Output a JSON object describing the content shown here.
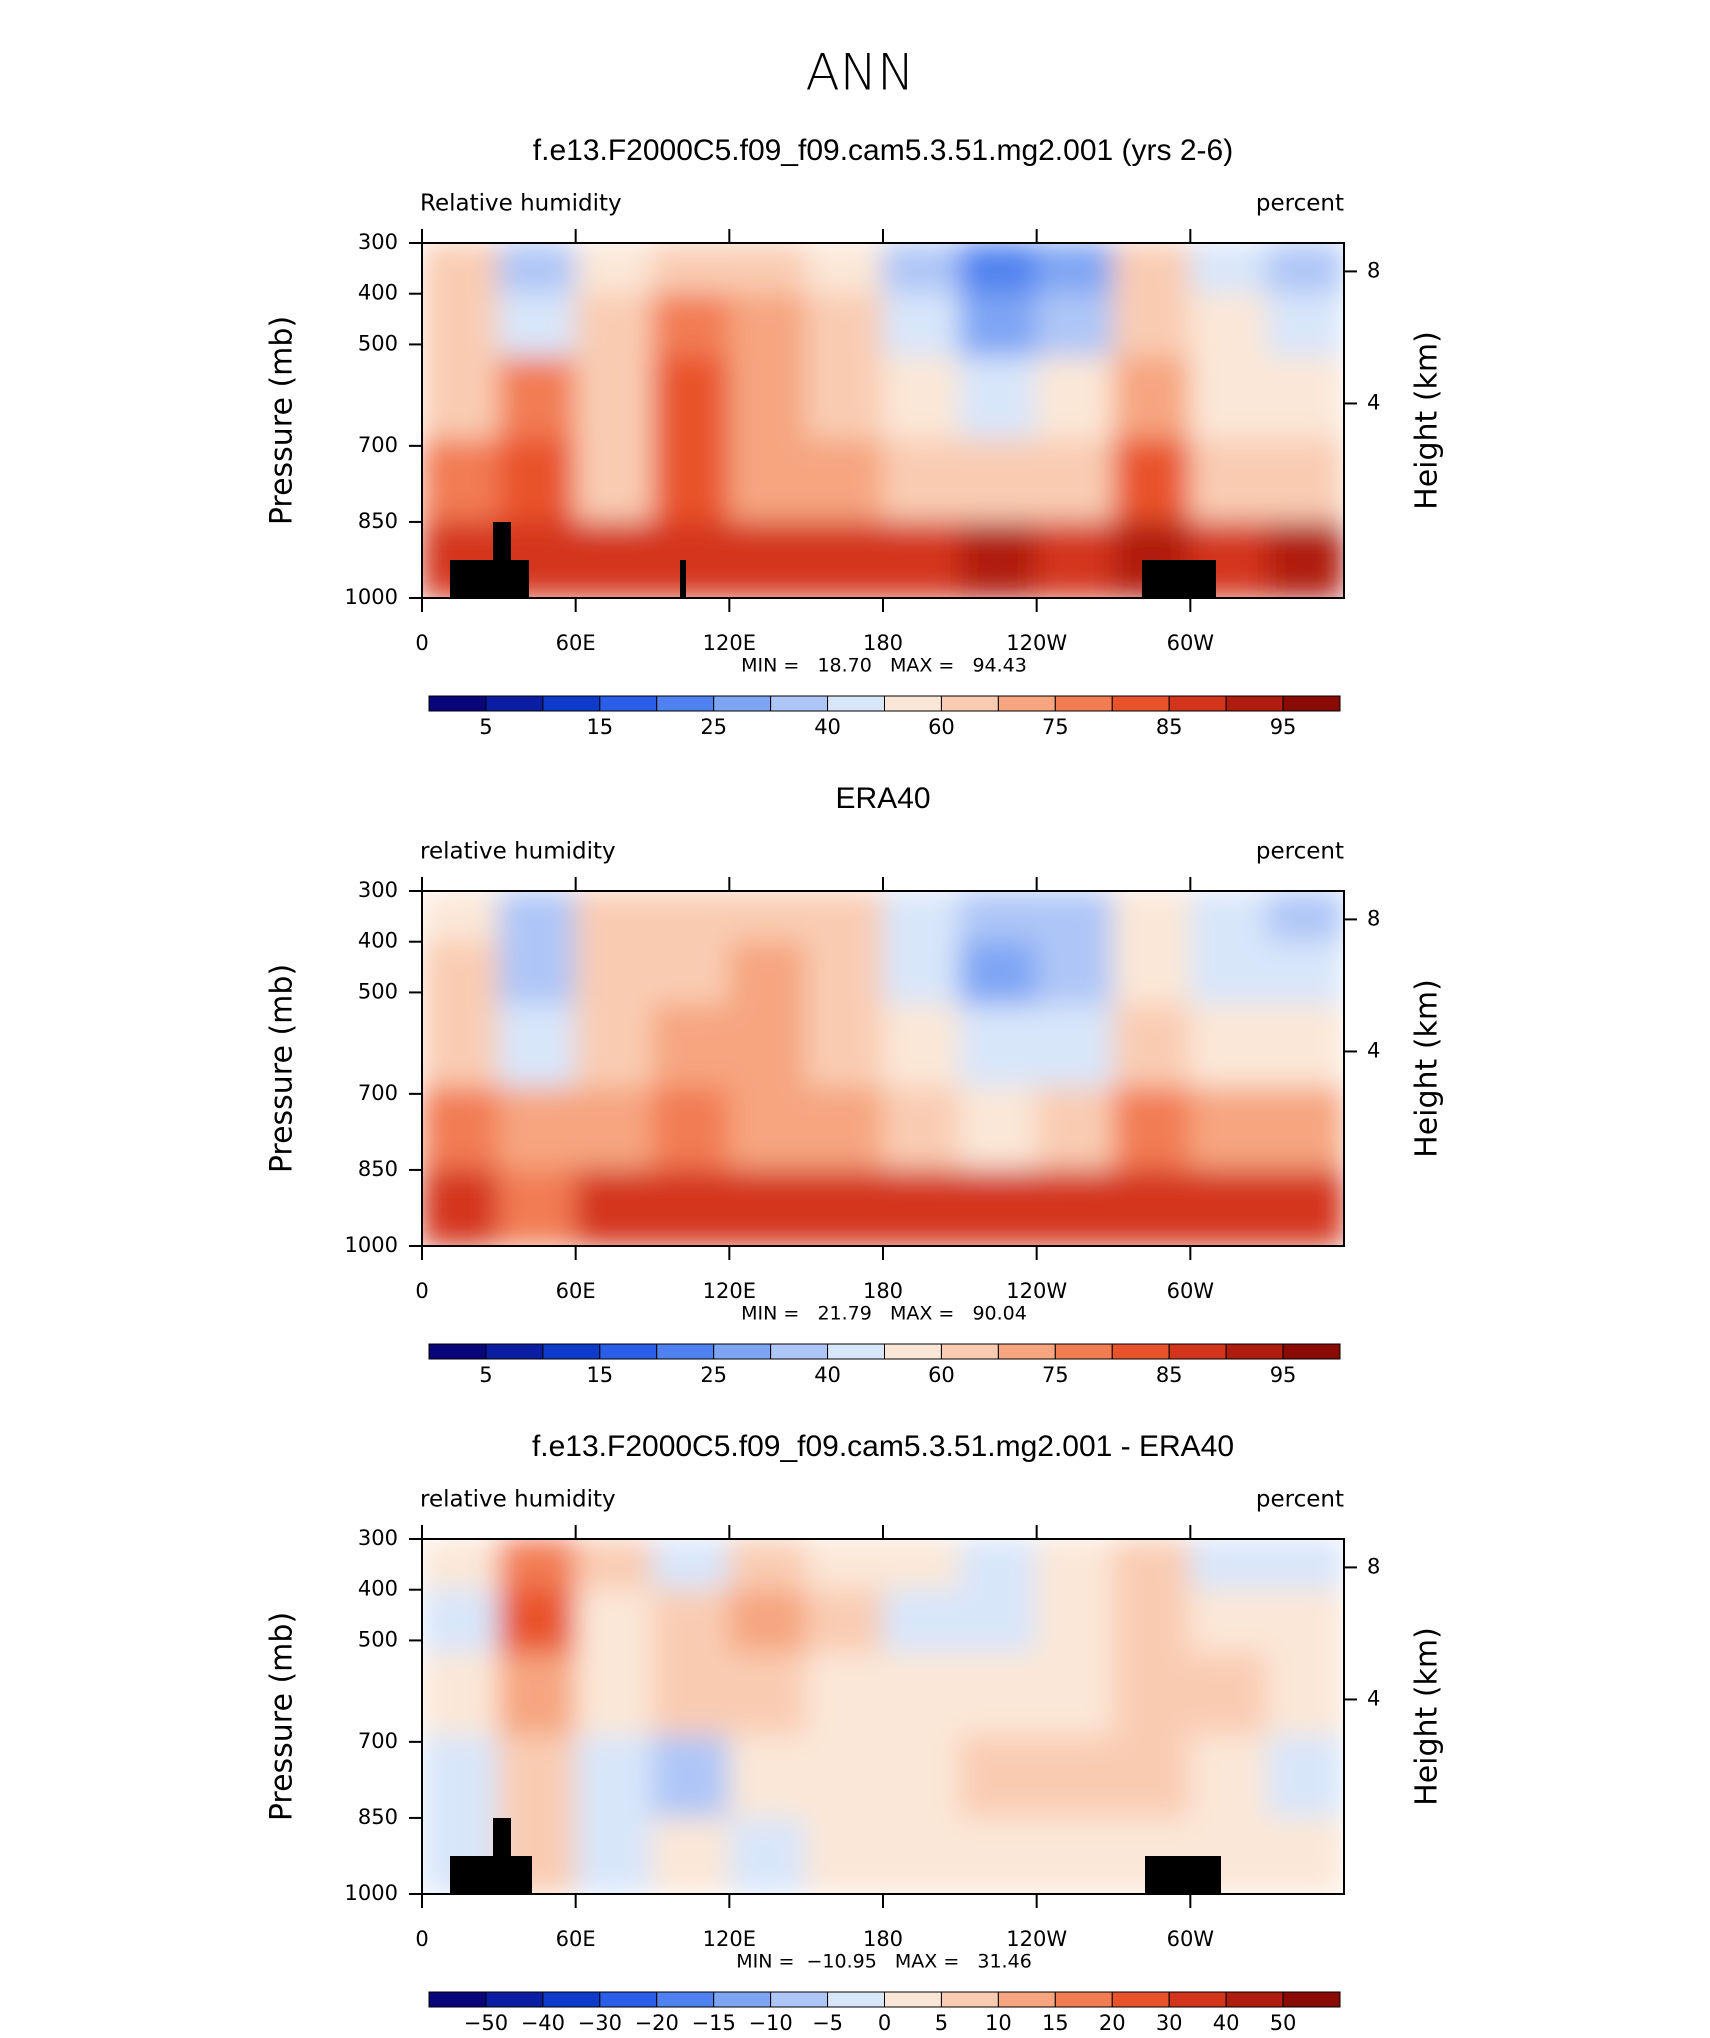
{
  "title": "ANN",
  "chart_data": [
    {
      "type": "contour",
      "title": "f.e13.F2000C5.f09_f09.cam5.3.51.mg2.001 (yrs 2-6)",
      "subtitle_left": "Relative humidity",
      "subtitle_right": "percent",
      "ylabel": "Pressure (mb)",
      "y2label": "Height (km)",
      "stats": "MIN =   18.70   MAX =   94.43",
      "x": [
        15,
        45,
        75,
        105,
        135,
        165,
        195,
        225,
        255,
        285,
        315,
        345
      ],
      "y": [
        350,
        450,
        600,
        775,
        925
      ],
      "z": [
        [
          62,
          38,
          58,
          62,
          65,
          55,
          35,
          24,
          28,
          62,
          45,
          35
        ],
        [
          65,
          45,
          62,
          75,
          70,
          60,
          40,
          28,
          35,
          65,
          50,
          42
        ],
        [
          68,
          75,
          62,
          80,
          72,
          65,
          52,
          45,
          50,
          72,
          58,
          55
        ],
        [
          78,
          80,
          68,
          80,
          72,
          70,
          65,
          62,
          65,
          80,
          68,
          66
        ],
        [
          88,
          85,
          88,
          88,
          86,
          88,
          88,
          90,
          88,
          90,
          85,
          90
        ]
      ],
      "xlim": [
        0,
        360
      ],
      "xticks": [
        0,
        {
          "value": 60,
          "label": "60E"
        },
        {
          "value": 120,
          "label": "120E"
        },
        180,
        {
          "value": 240,
          "label": "120W"
        },
        {
          "value": 300,
          "label": "60W"
        }
      ],
      "ylim": [
        1000,
        300
      ],
      "yticks": [
        300,
        400,
        500,
        700,
        850,
        1000
      ],
      "y2ticks": [
        8,
        4
      ],
      "levels": [
        5,
        10,
        15,
        20,
        25,
        30,
        40,
        50,
        60,
        70,
        75,
        80,
        85,
        90,
        95
      ],
      "colorbar_ticks": [
        5,
        15,
        25,
        40,
        60,
        75,
        85,
        95
      ],
      "colors": [
        "#08057a",
        "#0b1ea3",
        "#0f3bcc",
        "#2a5ee8",
        "#4f82f0",
        "#7ea5f4",
        "#aec6f7",
        "#d8e6fa",
        "#fbe7d7",
        "#f9ccb2",
        "#f6a57f",
        "#f27c52",
        "#e9532b",
        "#d4341b",
        "#b01c10",
        "#8a0b06"
      ]
    },
    {
      "type": "contour",
      "title": "ERA40",
      "subtitle_left": "relative humidity",
      "subtitle_right": "percent",
      "ylabel": "Pressure (mb)",
      "y2label": "Height (km)",
      "stats": "MIN =   21.79   MAX =   90.04",
      "x": [
        15,
        45,
        75,
        105,
        135,
        165,
        195,
        225,
        255,
        285,
        315,
        345
      ],
      "y": [
        350,
        450,
        600,
        775,
        925
      ],
      "z": [
        [
          58,
          38,
          62,
          65,
          65,
          60,
          40,
          30,
          32,
          55,
          45,
          38
        ],
        [
          62,
          32,
          62,
          68,
          70,
          60,
          42,
          28,
          30,
          55,
          48,
          40
        ],
        [
          65,
          45,
          62,
          72,
          72,
          65,
          50,
          42,
          48,
          62,
          55,
          55
        ],
        [
          75,
          70,
          70,
          75,
          72,
          70,
          62,
          58,
          62,
          75,
          70,
          70
        ],
        [
          85,
          75,
          88,
          86,
          88,
          85,
          85,
          85,
          88,
          88,
          85,
          88
        ]
      ],
      "xlim": [
        0,
        360
      ],
      "xticks": [
        0,
        {
          "value": 60,
          "label": "60E"
        },
        {
          "value": 120,
          "label": "120E"
        },
        180,
        {
          "value": 240,
          "label": "120W"
        },
        {
          "value": 300,
          "label": "60W"
        }
      ],
      "ylim": [
        1000,
        300
      ],
      "yticks": [
        300,
        400,
        500,
        700,
        850,
        1000
      ],
      "y2ticks": [
        8,
        4
      ],
      "levels": [
        5,
        10,
        15,
        20,
        25,
        30,
        40,
        50,
        60,
        70,
        75,
        80,
        85,
        90,
        95
      ],
      "colorbar_ticks": [
        5,
        15,
        25,
        40,
        60,
        75,
        85,
        95
      ],
      "colors": [
        "#08057a",
        "#0b1ea3",
        "#0f3bcc",
        "#2a5ee8",
        "#4f82f0",
        "#7ea5f4",
        "#aec6f7",
        "#d8e6fa",
        "#fbe7d7",
        "#f9ccb2",
        "#f6a57f",
        "#f27c52",
        "#e9532b",
        "#d4341b",
        "#b01c10",
        "#8a0b06"
      ]
    },
    {
      "type": "contour",
      "title": "f.e13.F2000C5.f09_f09.cam5.3.51.mg2.001 - ERA40",
      "subtitle_left": "relative humidity",
      "subtitle_right": "percent",
      "ylabel": "Pressure (mb)",
      "y2label": "Height (km)",
      "stats": "MIN =  −10.95   MAX =   31.46",
      "x": [
        15,
        45,
        75,
        105,
        135,
        165,
        195,
        225,
        255,
        285,
        315,
        345
      ],
      "y": [
        350,
        450,
        600,
        775,
        925
      ],
      "z": [
        [
          3,
          15,
          5,
          -2,
          5,
          2,
          0,
          -3,
          2,
          8,
          -3,
          -4
        ],
        [
          -4,
          20,
          3,
          5,
          10,
          5,
          -3,
          -2,
          3,
          5,
          2,
          0
        ],
        [
          2,
          12,
          3,
          5,
          8,
          2,
          2,
          3,
          2,
          8,
          5,
          2
        ],
        [
          -4,
          8,
          -2,
          -8,
          3,
          2,
          3,
          5,
          5,
          5,
          2,
          -2
        ],
        [
          -3,
          5,
          -2,
          2,
          -5,
          2,
          2,
          4,
          2,
          3,
          3,
          1
        ]
      ],
      "xlim": [
        0,
        360
      ],
      "xticks": [
        0,
        {
          "value": 60,
          "label": "60E"
        },
        {
          "value": 120,
          "label": "120E"
        },
        180,
        {
          "value": 240,
          "label": "120W"
        },
        {
          "value": 300,
          "label": "60W"
        }
      ],
      "ylim": [
        1000,
        300
      ],
      "yticks": [
        300,
        400,
        500,
        700,
        850,
        1000
      ],
      "y2ticks": [
        8,
        4
      ],
      "levels": [
        -50,
        -40,
        -30,
        -20,
        -15,
        -10,
        -5,
        0,
        5,
        10,
        15,
        20,
        30,
        40,
        50
      ],
      "colorbar_ticks": [
        {
          "value": -50,
          "label": "−50"
        },
        {
          "value": -40,
          "label": "−40"
        },
        {
          "value": -30,
          "label": "−30"
        },
        {
          "value": -20,
          "label": "−20"
        },
        {
          "value": -15,
          "label": "−15"
        },
        {
          "value": -10,
          "label": "−10"
        },
        {
          "value": -5,
          "label": "−5"
        },
        0,
        5,
        10,
        15,
        20,
        30,
        40,
        50
      ],
      "colors": [
        "#08057a",
        "#0b1ea3",
        "#0f3bcc",
        "#2a5ee8",
        "#4f82f0",
        "#7ea5f4",
        "#aec6f7",
        "#d8e6fa",
        "#fbe7d7",
        "#f9ccb2",
        "#f6a57f",
        "#f27c52",
        "#e9532b",
        "#d4341b",
        "#b01c10",
        "#8a0b06"
      ]
    }
  ]
}
